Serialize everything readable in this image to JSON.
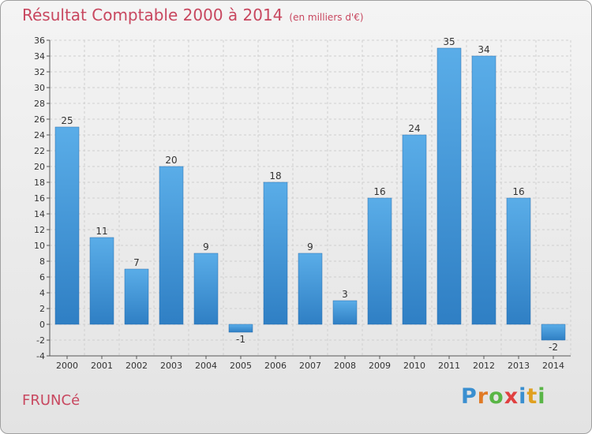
{
  "title": "Résultat Comptable 2000 à 2014",
  "unit": "(en milliers d'€)",
  "commune": "FRUNCé",
  "logo": {
    "letters": [
      "P",
      "r",
      "o",
      "x",
      "i",
      "t",
      "i"
    ],
    "colors": [
      "#3a8fd0",
      "#e07a25",
      "#59b546",
      "#e04040",
      "#3a8fd0",
      "#e0a020",
      "#59b546"
    ]
  },
  "chart_data": {
    "type": "bar",
    "categories": [
      "2000",
      "2001",
      "2002",
      "2003",
      "2004",
      "2005",
      "2006",
      "2007",
      "2008",
      "2009",
      "2010",
      "2011",
      "2012",
      "2013",
      "2014"
    ],
    "values": [
      25,
      11,
      7,
      20,
      9,
      -1,
      18,
      9,
      3,
      16,
      24,
      35,
      34,
      16,
      -2
    ],
    "labels": [
      "25",
      "11",
      "7",
      "20",
      "9",
      "-1",
      "18",
      "9",
      "3",
      "16",
      "24",
      "35",
      "34",
      "16",
      "-2"
    ],
    "ylim": [
      -4,
      36
    ],
    "yticks": [
      -4,
      -2,
      0,
      2,
      4,
      6,
      8,
      10,
      12,
      14,
      16,
      18,
      20,
      22,
      24,
      26,
      28,
      30,
      32,
      34,
      36
    ],
    "grid": true,
    "bar_color": "#4a9fe0"
  }
}
